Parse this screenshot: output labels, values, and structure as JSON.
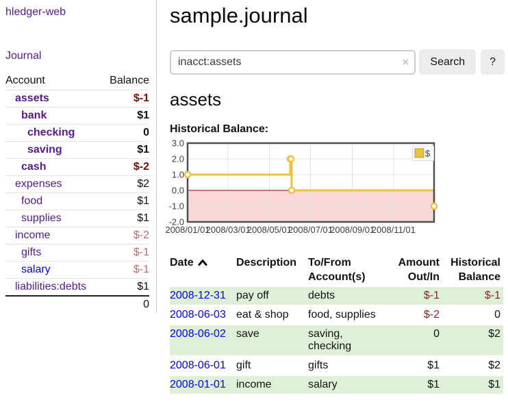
{
  "colors": {
    "accent_gold": "#edc240",
    "link_purple": "#551a8b",
    "link_blue": "#0000ee",
    "negative_strong": "#7b0c00",
    "negative_soft": "#bd6a6a",
    "negative_register": "#8e1f1f",
    "row_stripe_green": "#dff0d8",
    "chart_negative_bg": "#f9d8d8",
    "zero_line": "#8b0000"
  },
  "sidebar": {
    "app_title": "hledger-web",
    "journal_link": "Journal",
    "accounts_table": {
      "headers": {
        "account": "Account",
        "balance": "Balance"
      },
      "rows": [
        {
          "name": "assets",
          "depth": 1,
          "bold": true,
          "balance": "$-1",
          "tone": "strong"
        },
        {
          "name": "bank",
          "depth": 2,
          "bold": true,
          "balance": "$1"
        },
        {
          "name": "checking",
          "depth": 3,
          "bold": true,
          "balance": "0"
        },
        {
          "name": "saving",
          "depth": 3,
          "bold": true,
          "balance": "$1"
        },
        {
          "name": "cash",
          "depth": 2,
          "bold": true,
          "balance": "$-2",
          "tone": "strong"
        },
        {
          "name": "expenses",
          "depth": 1,
          "bold": false,
          "balance": "$2"
        },
        {
          "name": "food",
          "depth": 2,
          "bold": false,
          "balance": "$1"
        },
        {
          "name": "supplies",
          "depth": 2,
          "bold": false,
          "balance": "$1"
        },
        {
          "name": "income",
          "depth": 1,
          "bold": false,
          "balance": "$-2",
          "tone": "soft"
        },
        {
          "name": "gifts",
          "depth": 2,
          "bold": false,
          "balance": "$-1",
          "tone": "soft"
        },
        {
          "name": "salary",
          "depth": 2,
          "bold": false,
          "balance": "$-1",
          "tone": "soft",
          "link": "blue"
        },
        {
          "name": "liabilities:debts",
          "depth": 1,
          "bold": false,
          "balance": "$1"
        }
      ],
      "total": "0"
    }
  },
  "main": {
    "title": "sample.journal",
    "search": {
      "value": "inacct:assets",
      "clear_icon": "×",
      "button_label": "Search",
      "help_label": "?"
    },
    "account_heading": "assets",
    "chart_label": "Historical Balance:",
    "register": {
      "headers": [
        {
          "lines": [
            "Date"
          ],
          "sort": "asc",
          "align": "left"
        },
        {
          "lines": [
            "Description"
          ],
          "align": "left"
        },
        {
          "lines": [
            "To/From",
            "Account(s)"
          ],
          "align": "left"
        },
        {
          "lines": [
            "Amount",
            "Out/In"
          ],
          "align": "right"
        },
        {
          "lines": [
            "Historical",
            "Balance"
          ],
          "align": "right"
        }
      ],
      "rows": [
        {
          "date": "2008-12-31",
          "description": "pay off",
          "accounts": "debts",
          "amount": "$-1",
          "amount_negative": true,
          "balance": "$-1",
          "balance_negative": true
        },
        {
          "date": "2008-06-03",
          "description": "eat & shop",
          "accounts": "food, supplies",
          "amount": "$-2",
          "amount_negative": true,
          "balance": "0",
          "balance_negative": false
        },
        {
          "date": "2008-06-02",
          "description": "save",
          "accounts": "saving, checking",
          "amount": "0",
          "amount_negative": false,
          "balance": "$2",
          "balance_negative": false
        },
        {
          "date": "2008-06-01",
          "description": "gift",
          "accounts": "gifts",
          "amount": "$1",
          "amount_negative": false,
          "balance": "$2",
          "balance_negative": false
        },
        {
          "date": "2008-01-01",
          "description": "income",
          "accounts": "salary",
          "amount": "$1",
          "amount_negative": false,
          "balance": "$1",
          "balance_negative": false
        }
      ]
    }
  },
  "chart_data": {
    "type": "line",
    "step": true,
    "title": "Historical Balance",
    "series": [
      {
        "name": "$",
        "color": "#edc240",
        "points": [
          [
            "2008-01-01",
            1
          ],
          [
            "2008-06-01",
            2
          ],
          [
            "2008-06-02",
            2
          ],
          [
            "2008-06-03",
            0
          ],
          [
            "2008-12-31",
            -1
          ]
        ]
      }
    ],
    "x_range": [
      "2008-01-01",
      "2008-12-31"
    ],
    "x_ticks": [
      "2008/01/01",
      "2008/03/01",
      "2008/05/01",
      "2008/07/01",
      "2008/09/01",
      "2008/11/01"
    ],
    "y_ticks": [
      3.0,
      2.0,
      1.0,
      0.0,
      -1.0,
      -2.0
    ],
    "ylim": [
      -2,
      3
    ],
    "grid": true,
    "negative_region_fill": "#f9d8d8",
    "zero_line_color": "#8b0000",
    "legend": {
      "position": "top-right",
      "entries": [
        {
          "label": "$",
          "color": "#edc240"
        }
      ]
    }
  }
}
